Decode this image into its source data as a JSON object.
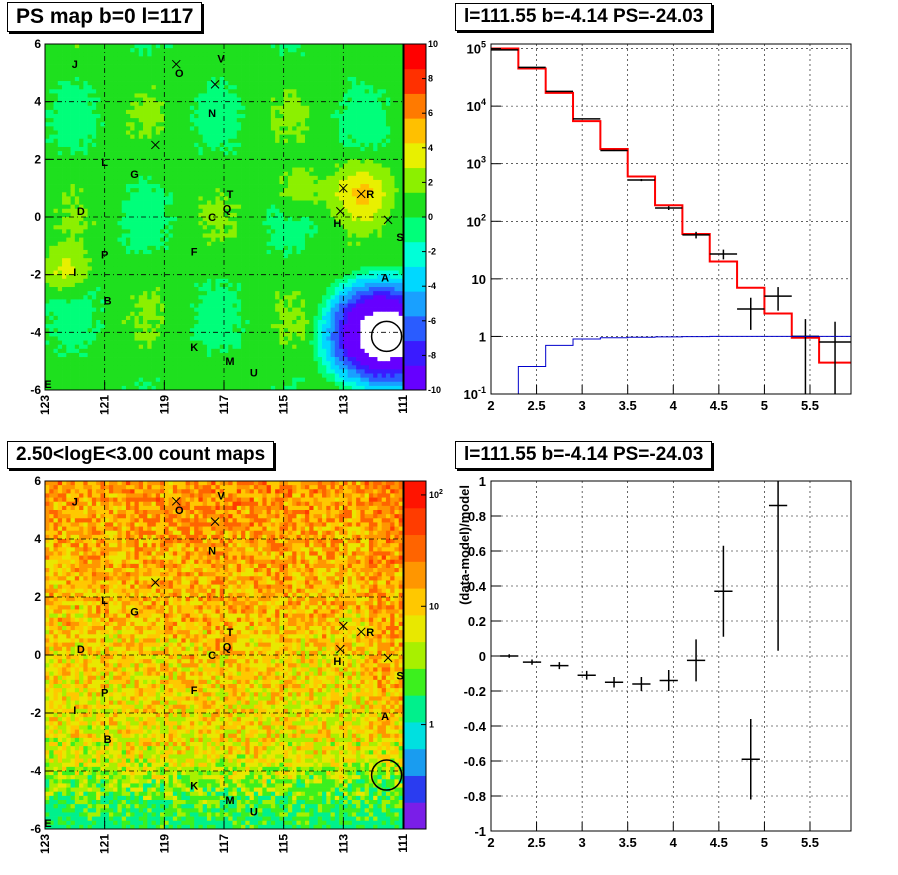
{
  "titles": {
    "ps_map": "PS map b=0 l=117",
    "spectrum": "l=111.55 b=-4.14 PS=-24.03",
    "count_map": "2.50<logE<3.00 count maps",
    "residual": "l=111.55 b=-4.14 PS=-24.03"
  },
  "chart_data": [
    {
      "type": "heatmap",
      "name": "ps-map",
      "title": "PS map b=0 l=117",
      "x_ticks": [
        "123",
        "121",
        "119",
        "117",
        "115",
        "113",
        "111"
      ],
      "xlim": [
        123,
        111
      ],
      "y_ticks": [
        "6",
        "4",
        "2",
        "0",
        "-2",
        "-4",
        "-6"
      ],
      "ylim": [
        -6,
        6
      ],
      "colorbar_ticks": [
        "10",
        "8",
        "6",
        "4",
        "2",
        "0",
        "-2",
        "-4",
        "-6",
        "-8",
        "-10"
      ],
      "zlim": [
        -10,
        10
      ],
      "markers": [
        {
          "label": "J",
          "l": 122.0,
          "b": 5.3
        },
        {
          "label": "O",
          "l": 118.5,
          "b": 5.0
        },
        {
          "label": "V",
          "l": 117.1,
          "b": 5.5
        },
        {
          "label": "N",
          "l": 117.4,
          "b": 3.6
        },
        {
          "label": "L",
          "l": 121.0,
          "b": 1.9
        },
        {
          "label": "G",
          "l": 120.0,
          "b": 1.5
        },
        {
          "label": "T",
          "l": 116.8,
          "b": 0.8
        },
        {
          "label": "Q",
          "l": 116.9,
          "b": 0.3
        },
        {
          "label": "C",
          "l": 117.4,
          "b": 0.0
        },
        {
          "label": "R",
          "l": 112.1,
          "b": 0.8
        },
        {
          "label": "H",
          "l": 113.2,
          "b": -0.2
        },
        {
          "label": "S",
          "l": 111.1,
          "b": -0.7
        },
        {
          "label": "D",
          "l": 121.8,
          "b": 0.2
        },
        {
          "label": "P",
          "l": 121.0,
          "b": -1.3
        },
        {
          "label": "F",
          "l": 118.0,
          "b": -1.2
        },
        {
          "label": "I",
          "l": 122.0,
          "b": -1.9
        },
        {
          "label": "A",
          "l": 111.6,
          "b": -2.1
        },
        {
          "label": "B",
          "l": 120.9,
          "b": -2.9
        },
        {
          "label": "K",
          "l": 118.0,
          "b": -4.5
        },
        {
          "label": "M",
          "l": 116.8,
          "b": -5.0
        },
        {
          "label": "U",
          "l": 116.0,
          "b": -5.4
        },
        {
          "label": "E",
          "l": 122.9,
          "b": -5.8
        }
      ],
      "crosses": [
        {
          "l": 118.6,
          "b": 5.3
        },
        {
          "l": 117.3,
          "b": 4.6
        },
        {
          "l": 119.3,
          "b": 2.5
        },
        {
          "l": 113.0,
          "b": 1.0
        },
        {
          "l": 112.4,
          "b": 0.8
        },
        {
          "l": 113.1,
          "b": 0.2
        },
        {
          "l": 111.5,
          "b": -0.1
        }
      ],
      "circle": {
        "l": 111.55,
        "b": -4.14
      }
    },
    {
      "type": "line",
      "name": "spectrum",
      "title": "l=111.55 b=-4.14 PS=-24.03",
      "x_ticks": [
        "2",
        "2.5",
        "3",
        "3.5",
        "4",
        "4.5",
        "5",
        "5.5"
      ],
      "xlim": [
        2,
        5.95
      ],
      "y_ticks": [
        "10^-1",
        "1",
        "10",
        "10^2",
        "10^3",
        "10^4",
        "10^5"
      ],
      "ylim": [
        0.1,
        120000
      ],
      "y_scale": "log",
      "bin_edges": [
        2.0,
        2.3,
        2.6,
        2.9,
        3.2,
        3.5,
        3.8,
        4.1,
        4.4,
        4.7,
        5.0,
        5.3,
        5.6,
        5.95
      ],
      "series": [
        {
          "color": "#ff0000",
          "values": [
            100000,
            45000,
            17000,
            5500,
            1800,
            600,
            190,
            60,
            20,
            7,
            2.5,
            0.95,
            0.35
          ]
        },
        {
          "color": "#000000",
          "values": [
            95000,
            47000,
            18000,
            6000,
            1700,
            520,
            170,
            58,
            27,
            3,
            5,
            1.0,
            0.8
          ],
          "errors": [
            300,
            200,
            130,
            75,
            40,
            22,
            13,
            7.6,
            5.2,
            1.7,
            2.2,
            1.0,
            1.0
          ]
        },
        {
          "color": "#0000cc",
          "values": [
            0.05,
            0.3,
            0.7,
            0.9,
            0.95,
            0.97,
            0.98,
            0.99,
            1.0,
            1.0,
            1.0,
            1.0,
            1.0
          ]
        }
      ]
    },
    {
      "type": "heatmap",
      "name": "count-map",
      "title": "2.50<logE<3.00 count maps",
      "x_ticks": [
        "123",
        "121",
        "119",
        "117",
        "115",
        "113",
        "111"
      ],
      "xlim": [
        123,
        111
      ],
      "y_ticks": [
        "6",
        "4",
        "2",
        "0",
        "-2",
        "-4",
        "-6"
      ],
      "ylim": [
        -6,
        6
      ],
      "colorbar_ticks": [
        "10^2",
        "10",
        "1"
      ],
      "z_scale": "log"
    },
    {
      "type": "scatter",
      "name": "residual",
      "title": "l=111.55 b=-4.14 PS=-24.03",
      "ylabel": "(data-model)/model",
      "x_ticks": [
        "2",
        "2.5",
        "3",
        "3.5",
        "4",
        "4.5",
        "5",
        "5.5"
      ],
      "xlim": [
        2,
        5.95
      ],
      "y_ticks": [
        "1",
        "0.8",
        "0.6",
        "0.4",
        "0.2",
        "0",
        "-0.2",
        "-0.4",
        "-0.6",
        "-0.8",
        "-1"
      ],
      "ylim": [
        -1,
        1
      ],
      "points": [
        {
          "x": 2.2,
          "y": 0.0,
          "xerr": 0.1,
          "yerr": 0.01
        },
        {
          "x": 2.45,
          "y": -0.035,
          "xerr": 0.1,
          "yerr": 0.015
        },
        {
          "x": 2.75,
          "y": -0.055,
          "xerr": 0.1,
          "yerr": 0.02
        },
        {
          "x": 3.05,
          "y": -0.11,
          "xerr": 0.1,
          "yerr": 0.025
        },
        {
          "x": 3.35,
          "y": -0.15,
          "xerr": 0.1,
          "yerr": 0.03
        },
        {
          "x": 3.65,
          "y": -0.16,
          "xerr": 0.1,
          "yerr": 0.04
        },
        {
          "x": 3.95,
          "y": -0.14,
          "xerr": 0.1,
          "yerr": 0.06
        },
        {
          "x": 4.25,
          "y": -0.025,
          "xerr": 0.1,
          "yerr": 0.12
        },
        {
          "x": 4.55,
          "y": 0.37,
          "xerr": 0.1,
          "yerr": 0.26
        },
        {
          "x": 4.85,
          "y": -0.59,
          "xerr": 0.1,
          "yerr": 0.23
        },
        {
          "x": 5.15,
          "y": 0.86,
          "xerr": 0.1,
          "yerr": 0.83
        }
      ]
    }
  ]
}
